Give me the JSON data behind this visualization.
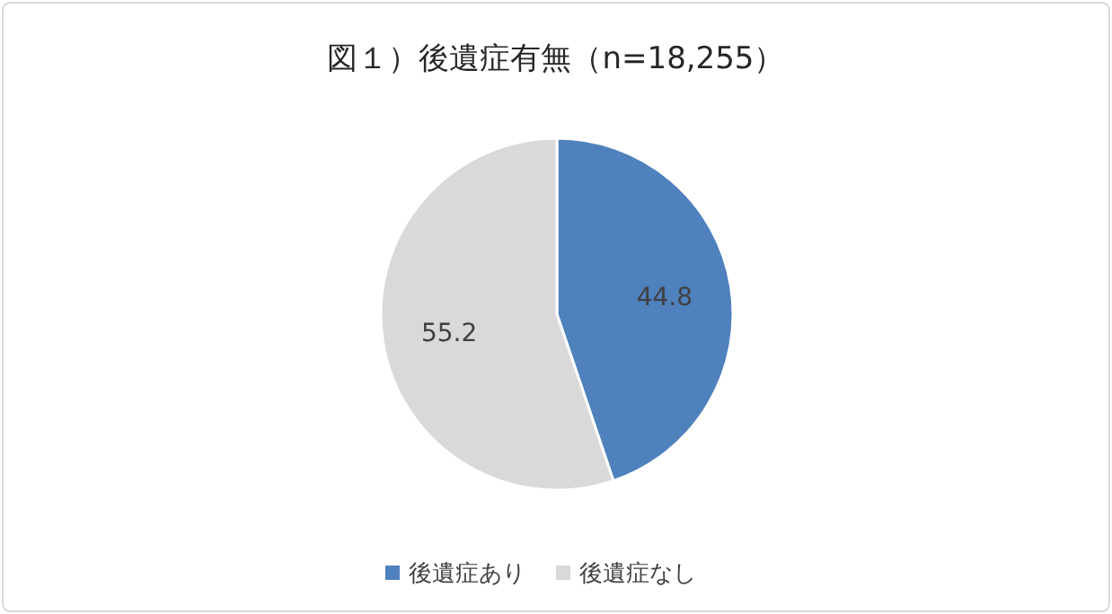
{
  "chart_data": {
    "type": "pie",
    "title": "図１）後遺症有無（n=18,255）",
    "categories": [
      "後遺症あり",
      "後遺症なし"
    ],
    "values": [
      44.8,
      55.2
    ],
    "colors": [
      "#4f81bd",
      "#d9d9d9"
    ],
    "data_labels": true,
    "legend": "bottom"
  }
}
